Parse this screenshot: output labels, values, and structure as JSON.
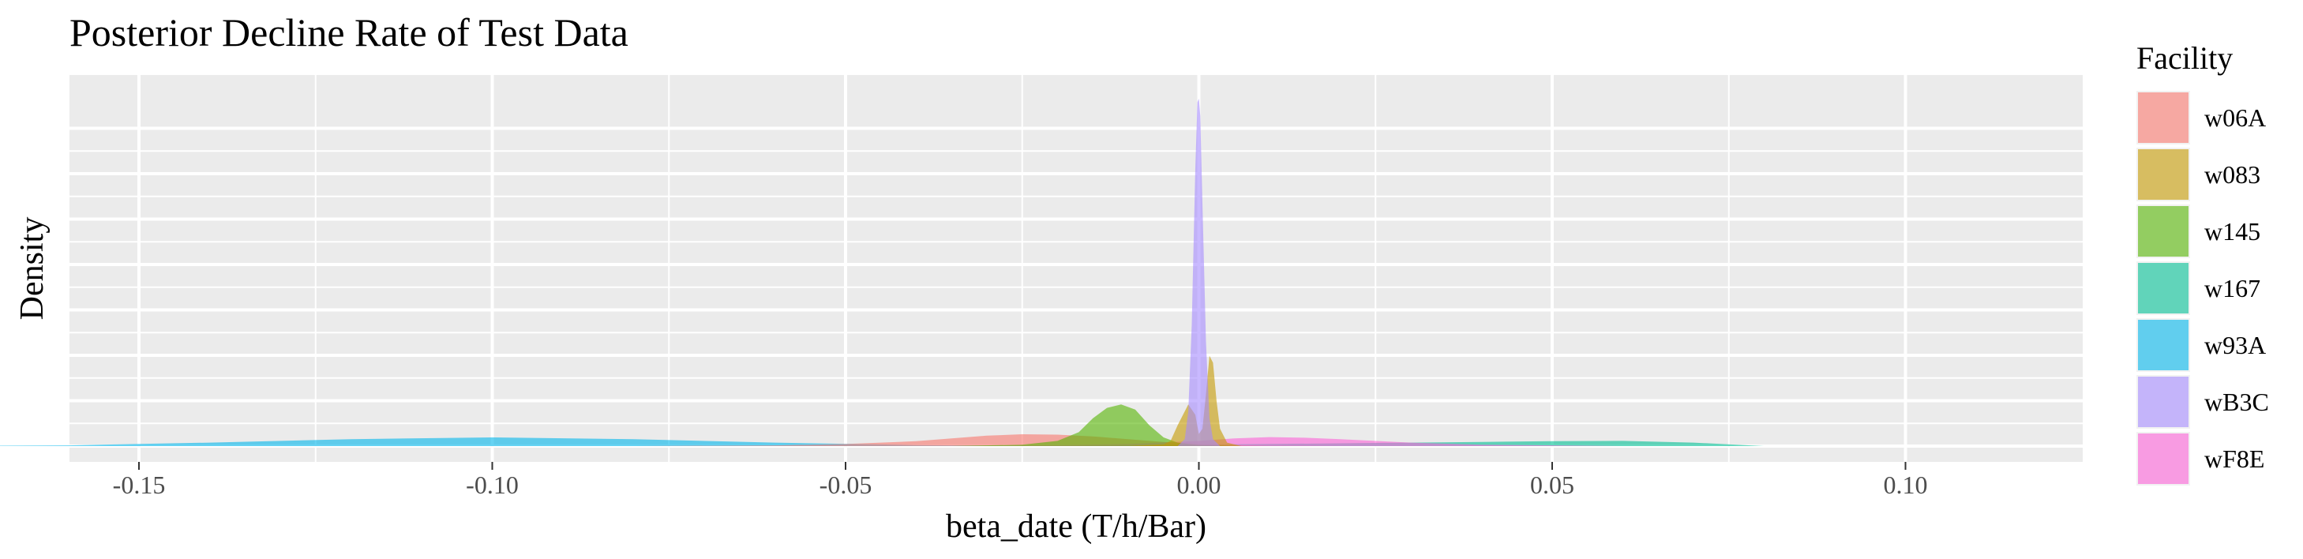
{
  "chart_data": {
    "type": "area",
    "title": "Posterior Decline Rate of Test Data",
    "xlabel": "beta_date (T/h/Bar)",
    "ylabel": "Density",
    "xlim": [
      -0.16,
      0.125
    ],
    "x_ticks": [
      -0.15,
      -0.1,
      -0.05,
      0.0,
      0.05,
      0.1
    ],
    "x_tick_labels": [
      "-0.15",
      "-0.10",
      "-0.05",
      "0.00",
      "0.05",
      "0.10"
    ],
    "ylim": [
      0,
      1.0
    ],
    "y_tick_labels_shown": false,
    "grid": true,
    "legend": {
      "title": "Facility",
      "position": "right"
    },
    "series": [
      {
        "name": "w06A",
        "color": "#F8766D",
        "x": [
          -0.08,
          -0.06,
          -0.05,
          -0.04,
          -0.035,
          -0.03,
          -0.025,
          -0.02,
          -0.015,
          -0.01,
          -0.005,
          0.0,
          0.005,
          0.01,
          0.02
        ],
        "y": [
          0.0,
          0.002,
          0.006,
          0.014,
          0.022,
          0.03,
          0.034,
          0.033,
          0.028,
          0.02,
          0.012,
          0.006,
          0.003,
          0.001,
          0.0
        ]
      },
      {
        "name": "w083",
        "color": "#C49A00",
        "x": [
          -0.01,
          -0.005,
          -0.004,
          -0.003,
          -0.0015,
          -0.0005,
          0.0,
          0.0005,
          0.001,
          0.0015,
          0.002,
          0.0025,
          0.003,
          0.004,
          0.006
        ],
        "y": [
          0.0,
          0.005,
          0.015,
          0.06,
          0.12,
          0.09,
          0.035,
          0.05,
          0.15,
          0.26,
          0.24,
          0.13,
          0.05,
          0.01,
          0.0
        ]
      },
      {
        "name": "w145",
        "color": "#53B400",
        "x": [
          -0.035,
          -0.025,
          -0.02,
          -0.017,
          -0.015,
          -0.013,
          -0.011,
          -0.009,
          -0.007,
          -0.005,
          -0.003,
          0.0,
          0.005
        ],
        "y": [
          0.0,
          0.004,
          0.015,
          0.04,
          0.08,
          0.11,
          0.12,
          0.105,
          0.06,
          0.025,
          0.01,
          0.003,
          0.0
        ]
      },
      {
        "name": "w167",
        "color": "#00C094",
        "x": [
          -0.02,
          0.0,
          0.02,
          0.03,
          0.04,
          0.05,
          0.06,
          0.07,
          0.08
        ],
        "y": [
          0.0,
          0.004,
          0.008,
          0.01,
          0.012,
          0.014,
          0.015,
          0.01,
          0.0
        ]
      },
      {
        "name": "w93A",
        "color": "#00B6EB",
        "x": [
          -0.18,
          -0.16,
          -0.14,
          -0.12,
          -0.1,
          -0.08,
          -0.06,
          -0.04,
          -0.02
        ],
        "y": [
          0.0,
          0.002,
          0.01,
          0.02,
          0.025,
          0.02,
          0.01,
          0.003,
          0.0
        ]
      },
      {
        "name": "wB3C",
        "color": "#A58AFF",
        "x": [
          -0.003,
          -0.002,
          -0.0015,
          -0.001,
          -0.0005,
          -0.0002,
          0.0,
          0.0002,
          0.0005,
          0.001,
          0.0015,
          0.002,
          0.003
        ],
        "y": [
          0.0,
          0.02,
          0.1,
          0.35,
          0.8,
          0.99,
          1.0,
          0.95,
          0.7,
          0.3,
          0.08,
          0.02,
          0.0
        ]
      },
      {
        "name": "wF8E",
        "color": "#FB61D7",
        "x": [
          -0.03,
          -0.01,
          0.0,
          0.005,
          0.01,
          0.015,
          0.02,
          0.03,
          0.04,
          0.06
        ],
        "y": [
          0.0,
          0.006,
          0.015,
          0.022,
          0.026,
          0.024,
          0.02,
          0.01,
          0.004,
          0.0
        ]
      }
    ]
  }
}
